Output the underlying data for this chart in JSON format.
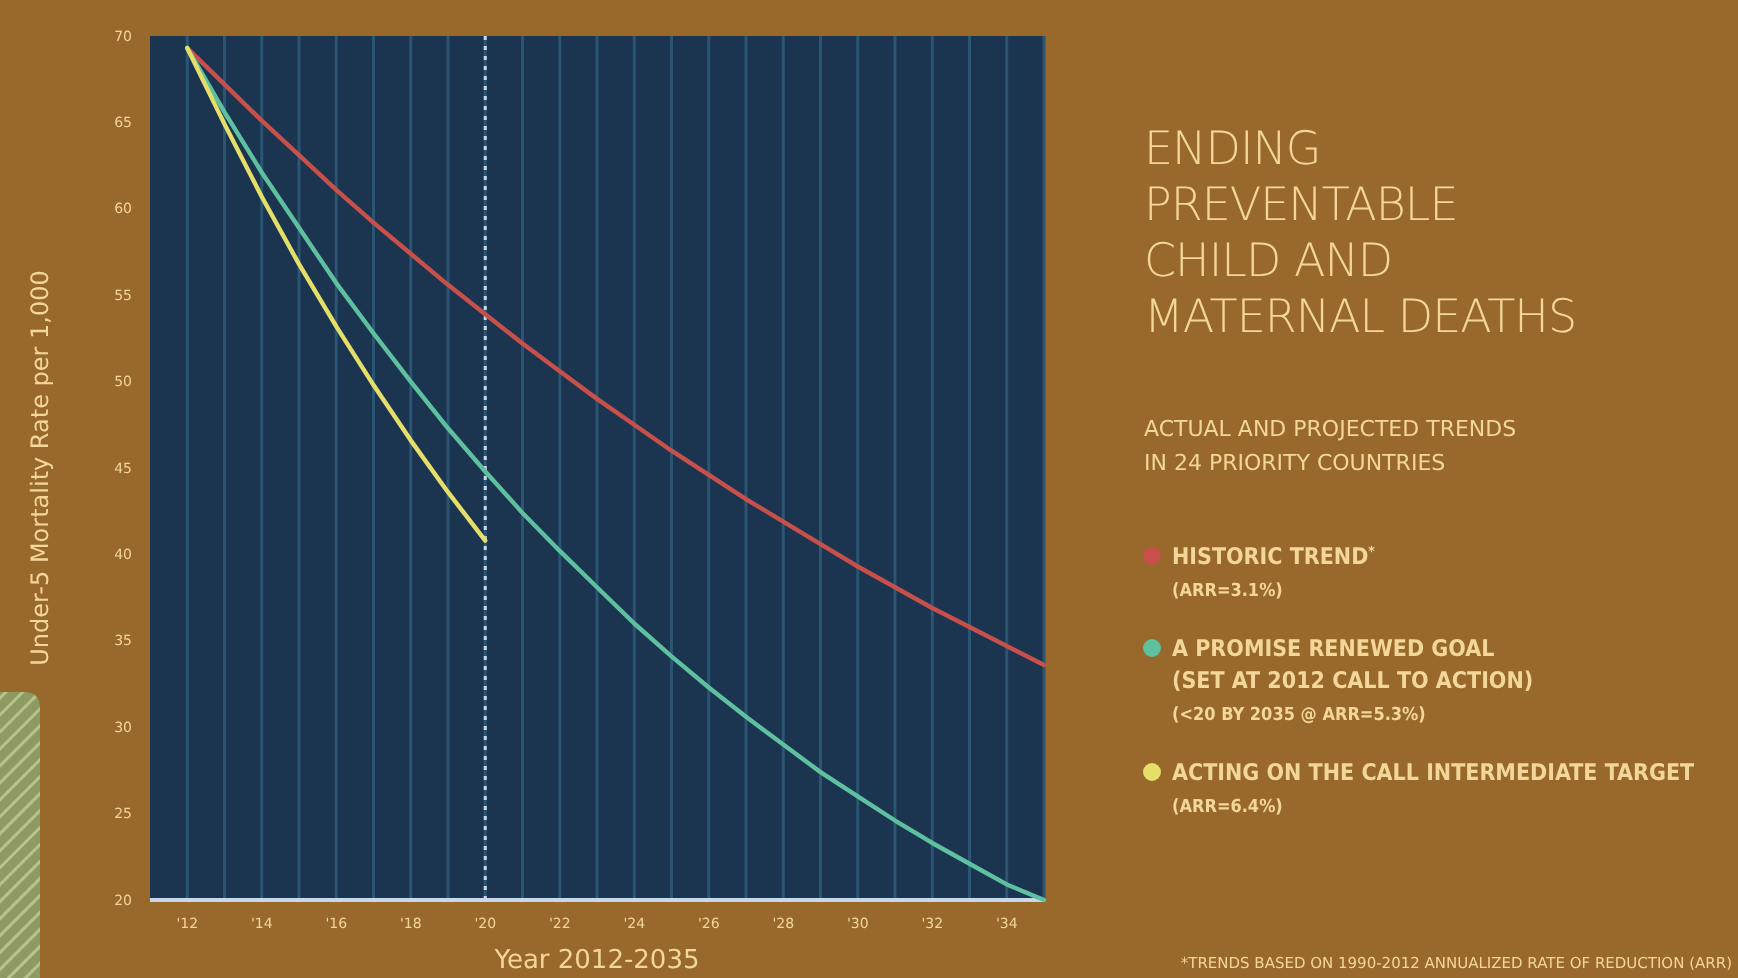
{
  "chart_data": {
    "type": "line",
    "title": "ENDING\nPREVENTABLE\nCHILD AND\nMATERNAL DEATHS",
    "subtitle": "ACTUAL AND PROJECTED TRENDS\nIN 24 PRIORITY COUNTRIES",
    "xlabel": "Year 2012-2035",
    "ylabel": "Under-5 Mortality Rate per 1,000",
    "annotations": [
      "*TRENDS BASED ON 1990-2012 ANNUALIZED RATE OF REDUCTION (ARR)"
    ],
    "x": [
      2012,
      2013,
      2014,
      2015,
      2016,
      2017,
      2018,
      2019,
      2020,
      2021,
      2022,
      2023,
      2024,
      2025,
      2026,
      2027,
      2028,
      2029,
      2030,
      2031,
      2032,
      2033,
      2034,
      2035
    ],
    "series": [
      {
        "name": "HISTORIC TREND$^{*}$\n(ARR=3.1%)",
        "color": "#c8504a",
        "values": [
          69.3,
          67.2,
          65.1,
          63.1,
          61.1,
          59.2,
          57.4,
          55.6,
          53.9,
          52.2,
          50.6,
          49.0,
          47.5,
          46.0,
          44.6,
          43.2,
          41.9,
          40.6,
          39.3,
          38.1,
          36.9,
          35.8,
          34.7,
          33.6
        ]
      },
      {
        "name": "A PROMISE RENEWED GOAL\n(SET AT 2012 CALL TO ACTION)\n(<20 BY 2035 @ ARR=5.3%)",
        "color": "#5fc0a0",
        "values": [
          69.3,
          65.6,
          62.1,
          58.9,
          55.7,
          52.8,
          50.0,
          47.3,
          44.8,
          42.4,
          40.2,
          38.1,
          36.0,
          34.1,
          32.3,
          30.6,
          29.0,
          27.4,
          26.0,
          24.6,
          23.3,
          22.1,
          20.9,
          20.0
        ]
      },
      {
        "name": "ACTING ON THE CALL INTERMEDIATE TARGET\n(ARR=6.4%)",
        "color": "#e5df6a",
        "x": [
          2012,
          2013,
          2014,
          2015,
          2016,
          2017,
          2018,
          2019,
          2020
        ],
        "values": [
          69.3,
          64.9,
          60.7,
          56.8,
          53.2,
          49.8,
          46.6,
          43.6,
          40.8
        ]
      }
    ],
    "xlim": [
      2011,
      2035
    ],
    "ylim": [
      20,
      70
    ],
    "xticks": [
      {
        "value": 2012,
        "label": "'12"
      },
      {
        "value": 2013,
        "label": null
      },
      {
        "value": 2014,
        "label": "'14"
      },
      {
        "value": 2015,
        "label": null
      },
      {
        "value": 2016,
        "label": "'16"
      },
      {
        "value": 2017,
        "label": null
      },
      {
        "value": 2018,
        "label": "'18"
      },
      {
        "value": 2019,
        "label": null
      },
      {
        "value": 2020,
        "label": "'20"
      },
      {
        "value": 2021,
        "label": null
      },
      {
        "value": 2022,
        "label": "'22"
      },
      {
        "value": 2023,
        "label": null
      },
      {
        "value": 2024,
        "label": "'24"
      },
      {
        "value": 2025,
        "label": null
      },
      {
        "value": 2026,
        "label": "'26"
      },
      {
        "value": 2027,
        "label": null
      },
      {
        "value": 2028,
        "label": "'28"
      },
      {
        "value": 2029,
        "label": null
      },
      {
        "value": 2030,
        "label": "'30"
      },
      {
        "value": 2031,
        "label": null
      },
      {
        "value": 2032,
        "label": "'32"
      },
      {
        "value": 2033,
        "label": null
      },
      {
        "value": 2034,
        "label": "'34"
      },
      {
        "value": 2035,
        "label": null
      }
    ],
    "yticks": [
      20,
      25,
      30,
      35,
      40,
      45,
      50,
      55,
      60,
      65,
      70
    ],
    "ref_lines": [
      {
        "axis": "x",
        "value": 2020,
        "color": "#c9d8e8",
        "line_style": "dotted"
      }
    ],
    "grid": "x",
    "legend": "right",
    "marker": "none",
    "line_style": "solid"
  }
}
